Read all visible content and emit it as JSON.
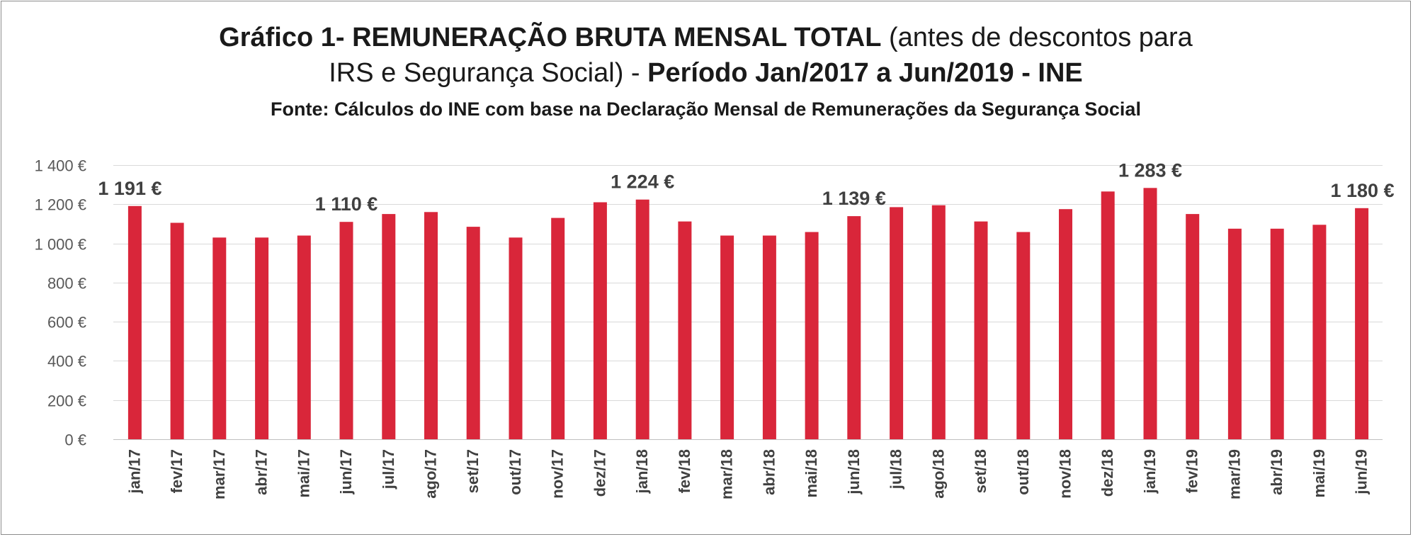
{
  "title": {
    "line1_bold": "Gráfico 1- REMUNERAÇÃO BRUTA MENSAL TOTAL",
    "line1_normal": " (antes de descontos para",
    "line2_normal": "IRS e Segurança Social) - ",
    "line2_bold": "Período Jan/2017  a Jun/2019 - INE",
    "source": "Fonte: Cálculos do INE com base na Declaração  Mensal de Remunerações da Segurança Social"
  },
  "colors": {
    "bar": "#d9263a",
    "grid": "#d9d9d9",
    "axis_text": "#595959"
  },
  "chart_data": {
    "type": "bar",
    "categories": [
      "jan/17",
      "fev/17",
      "mar/17",
      "abr/17",
      "mai/17",
      "jun/17",
      "jul/17",
      "ago/17",
      "set/17",
      "out/17",
      "nov/17",
      "dez/17",
      "jan/18",
      "fev/18",
      "mar/18",
      "abr/18",
      "mai/18",
      "jun/18",
      "jul/18",
      "ago/18",
      "set/18",
      "out/18",
      "nov/18",
      "dez/18",
      "jan/19",
      "fev/19",
      "mar/19",
      "abr/19",
      "mai/19",
      "jun/19"
    ],
    "values": [
      1191,
      1105,
      1030,
      1030,
      1040,
      1110,
      1150,
      1160,
      1085,
      1030,
      1130,
      1210,
      1224,
      1112,
      1040,
      1040,
      1058,
      1139,
      1185,
      1195,
      1112,
      1058,
      1175,
      1265,
      1283,
      1150,
      1075,
      1075,
      1095,
      1180
    ],
    "data_labels": [
      {
        "index": 0,
        "text": "1 191 €"
      },
      {
        "index": 5,
        "text": "1 110 €"
      },
      {
        "index": 12,
        "text": "1 224 €"
      },
      {
        "index": 17,
        "text": "1 139 €"
      },
      {
        "index": 24,
        "text": "1 283 €"
      },
      {
        "index": 29,
        "text": "1 180 €"
      }
    ],
    "y_ticks": [
      {
        "value": 0,
        "label": "0 €"
      },
      {
        "value": 200,
        "label": "200 €"
      },
      {
        "value": 400,
        "label": "400 €"
      },
      {
        "value": 600,
        "label": "600 €"
      },
      {
        "value": 800,
        "label": "800 €"
      },
      {
        "value": 1000,
        "label": "1 000 €"
      },
      {
        "value": 1200,
        "label": "1 200 €"
      },
      {
        "value": 1400,
        "label": "1 400 €"
      }
    ],
    "ylim": [
      0,
      1400
    ],
    "grid": true,
    "legend": "none"
  }
}
